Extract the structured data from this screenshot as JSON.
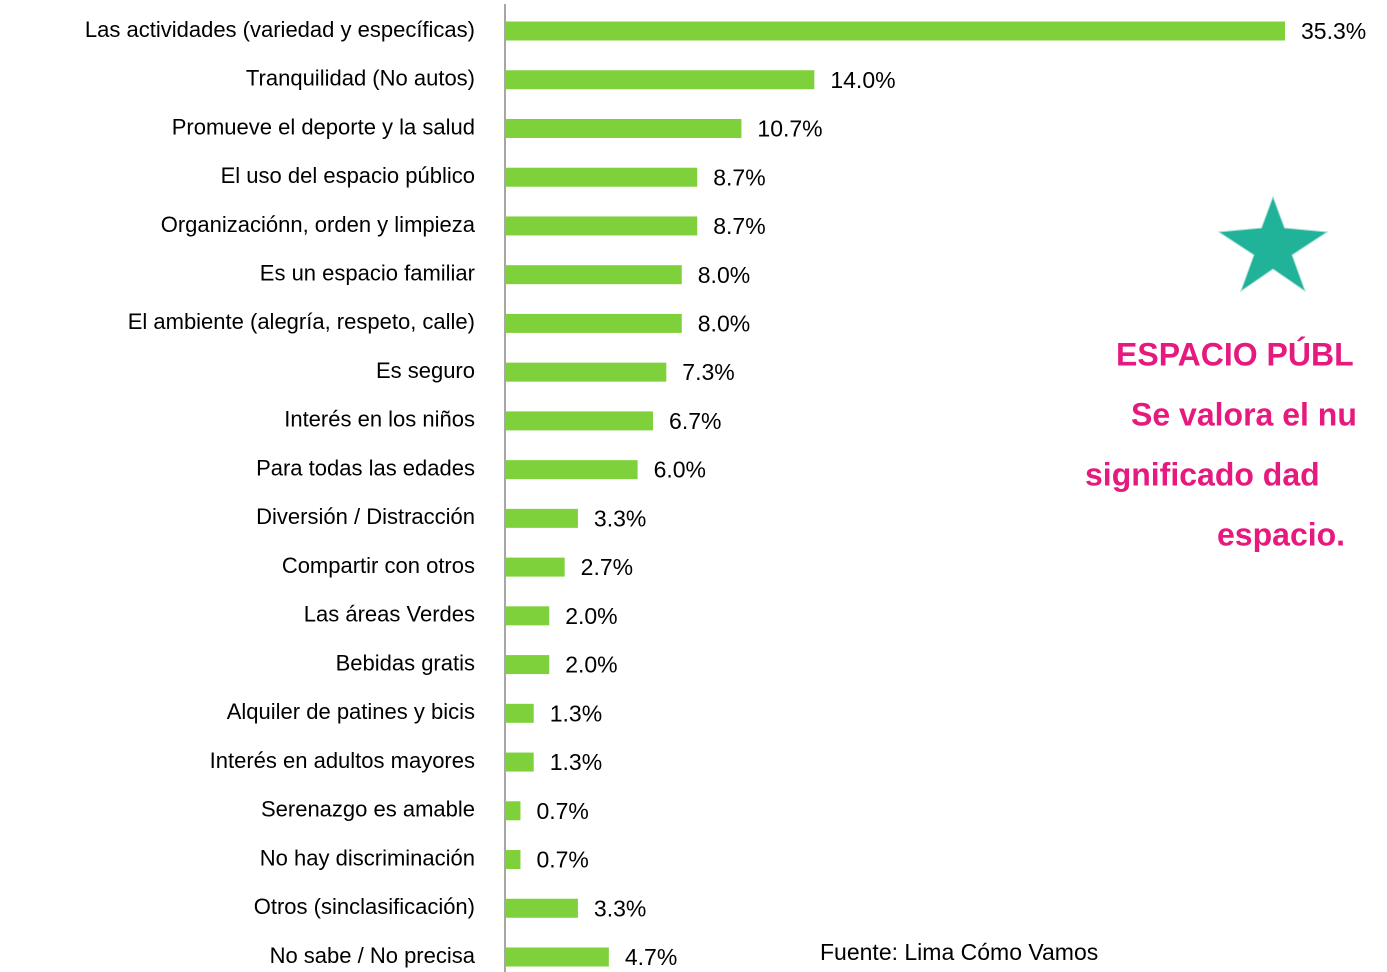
{
  "chart_data": {
    "type": "bar",
    "orientation": "horizontal",
    "categories": [
      "Las actividades (variedad y específicas)",
      "Tranquilidad (No autos)",
      "Promueve el deporte y la salud",
      "El uso del espacio público",
      "Organizaciónn, orden y limpieza",
      "Es un espacio familiar",
      "El ambiente (alegría, respeto, calle)",
      "Es seguro",
      "Interés en los niños",
      "Para todas las edades",
      "Diversión / Distracción",
      "Compartir con otros",
      "Las áreas Verdes",
      "Bebidas gratis",
      "Alquiler de patines y bicis",
      "Interés en adultos mayores",
      "Serenazgo es amable",
      "No hay discriminación",
      "Otros (sinclasificación)",
      "No sabe / No precisa"
    ],
    "values": [
      35.3,
      14.0,
      10.7,
      8.7,
      8.7,
      8.0,
      8.0,
      7.3,
      6.7,
      6.0,
      3.3,
      2.7,
      2.0,
      2.0,
      1.3,
      1.3,
      0.7,
      0.7,
      3.3,
      4.7
    ],
    "value_labels": [
      "35.3%",
      "14.0%",
      "10.7%",
      "8.7%",
      "8.7%",
      "8.0%",
      "8.0%",
      "7.3%",
      "6.7%",
      "6.0%",
      "3.3%",
      "2.7%",
      "2.0%",
      "2.0%",
      "1.3%",
      "1.3%",
      "0.7%",
      "0.7%",
      "3.3%",
      "4.7%"
    ],
    "color": "#7fd13b",
    "annotations": [
      "ESPACIO PÚBL",
      "Se valora el nu",
      "significado dad",
      "espacio."
    ],
    "source": "Fuente: Lima Cómo Vamos"
  }
}
